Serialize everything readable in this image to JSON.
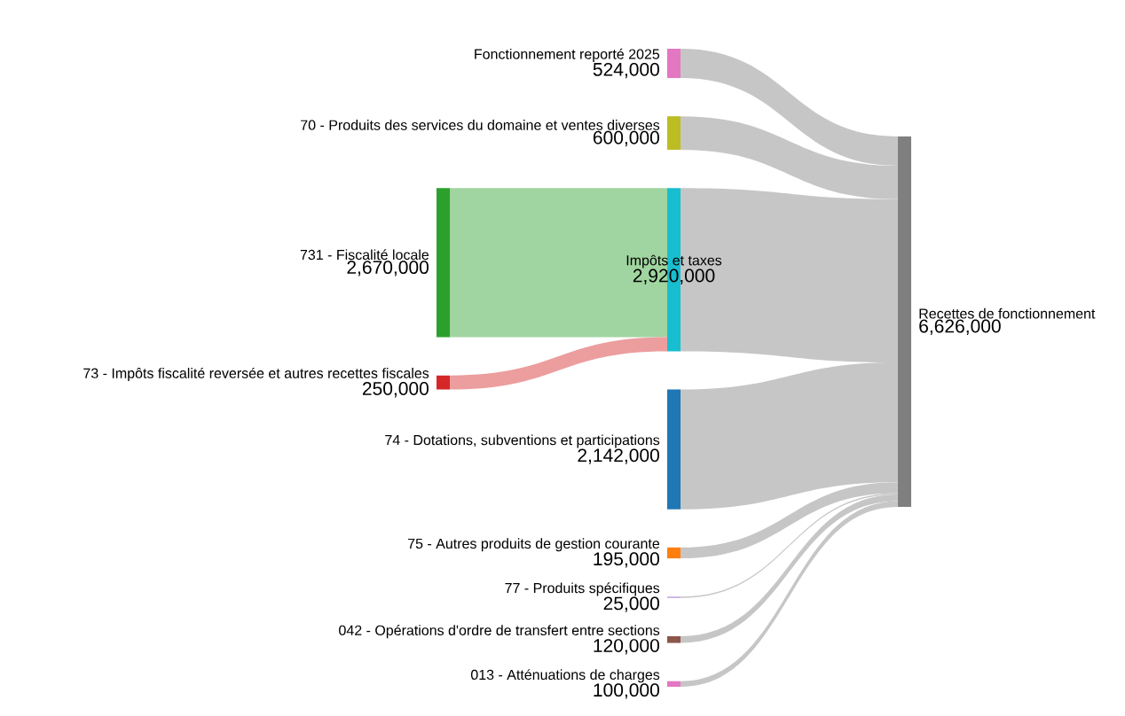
{
  "chart_data": {
    "type": "other",
    "categories": [
      "Fonctionnement reporté 2025",
      "70 - Produits des services du domaine et ventes diverses",
      "731 - Fiscalité locale",
      "73 - Impôts fiscalité reversée et autres recettes fiscales",
      "Impôts et taxes",
      "74 - Dotations, subventions et participations",
      "75 - Autres produits de gestion courante",
      "77 - Produits spécifiques",
      "042 - Opérations d'ordre de transfert entre sections",
      "013 - Atténuations de charges",
      "Recettes de fonctionnement"
    ],
    "values": [
      524000,
      600000,
      2670000,
      250000,
      2920000,
      2142000,
      195000,
      25000,
      120000,
      100000,
      6626000
    ],
    "value_labels": [
      "524,000",
      "600,000",
      "2,670,000",
      "250,000",
      "2,920,000",
      "2,142,000",
      "195,000",
      "25,000",
      "120,000",
      "100,000",
      "6,626,000"
    ],
    "colors": [
      "#e377c2",
      "#bcbd22",
      "#2ca02c",
      "#d62728",
      "#17becf",
      "#1f77b4",
      "#ff7f0e",
      "#c5a8e0",
      "#8c564b",
      "#e377c2",
      "#7f7f7f"
    ]
  }
}
